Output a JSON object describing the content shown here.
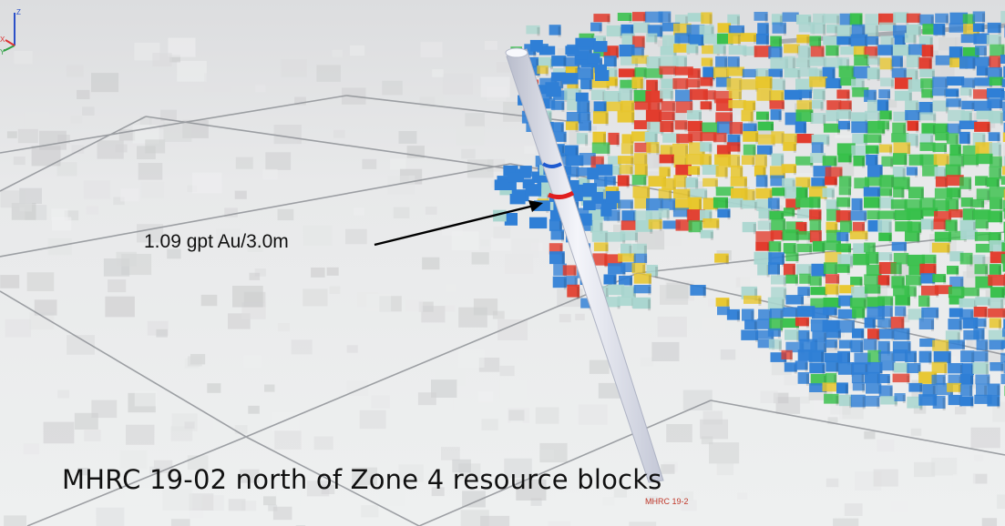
{
  "scene": {
    "annotation_label": "1.09 gpt Au/3.0m",
    "caption": "MHRC 19-02 north of Zone 4 resource blocks",
    "drillhole_tag": "MHRC 19-2",
    "axis_labels": {
      "z": "Z",
      "x": "X",
      "y": "Y"
    }
  },
  "colors": {
    "ground": "#e9eaeb",
    "grid_line": "#8f9297",
    "grade_low": "#2f7fd6",
    "grade_lowmid": "#a9d6cf",
    "grade_mid": "#37c04a",
    "grade_midhigh": "#e8c62b",
    "grade_high": "#e23a2a",
    "drillhole": "#dcdfe8",
    "intercept": "#e01f1f",
    "tag_text": "#c0392b"
  }
}
